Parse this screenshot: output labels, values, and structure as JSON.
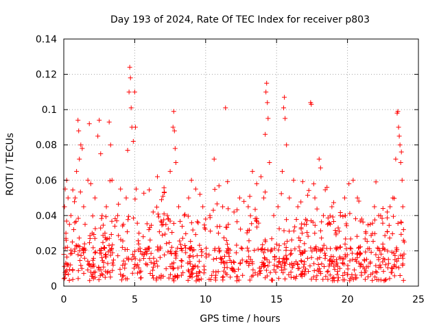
{
  "chart_data": {
    "type": "scatter",
    "title": "Day 193 of 2024, Rate Of TEC Index for receiver p803",
    "xlabel": "GPS time / hours",
    "ylabel": "ROTI / TECUs",
    "xlim": [
      0,
      25
    ],
    "ylim": [
      0,
      0.14
    ],
    "xticks": [
      0,
      5,
      10,
      15,
      20,
      25
    ],
    "xtick_labels": [
      "0",
      "5",
      "10",
      "15",
      "20",
      "25"
    ],
    "yticks": [
      0,
      0.02,
      0.04,
      0.06,
      0.08,
      0.1,
      0.12,
      0.14
    ],
    "ytick_labels": [
      "0",
      "0.02",
      "0.04",
      "0.06",
      "0.08",
      "0.1",
      "0.12",
      "0.14"
    ],
    "grid": true,
    "marker": "+",
    "color": "#ff0000",
    "series": [
      {
        "name": "ROTI",
        "points": [
          [
            0.0,
            0.018
          ],
          [
            0.05,
            0.045
          ],
          [
            0.1,
            0.055
          ],
          [
            0.15,
            0.03
          ],
          [
            0.2,
            0.06
          ],
          [
            0.25,
            0.022
          ],
          [
            0.3,
            0.05
          ],
          [
            0.35,
            0.012
          ],
          [
            0.4,
            0.035
          ],
          [
            0.5,
            0.04
          ],
          [
            0.6,
            0.025
          ],
          [
            0.7,
            0.032
          ],
          [
            0.8,
            0.05
          ],
          [
            0.9,
            0.065
          ],
          [
            1.0,
            0.094
          ],
          [
            1.05,
            0.088
          ],
          [
            1.1,
            0.072
          ],
          [
            1.2,
            0.08
          ],
          [
            1.3,
            0.078
          ],
          [
            1.4,
            0.045
          ],
          [
            1.5,
            0.035
          ],
          [
            1.7,
            0.06
          ],
          [
            1.8,
            0.092
          ],
          [
            1.9,
            0.058
          ],
          [
            2.0,
            0.03
          ],
          [
            2.2,
            0.05
          ],
          [
            2.4,
            0.085
          ],
          [
            2.5,
            0.094
          ],
          [
            2.6,
            0.075
          ],
          [
            2.7,
            0.04
          ],
          [
            2.9,
            0.03
          ],
          [
            3.0,
            0.045
          ],
          [
            3.2,
            0.093
          ],
          [
            3.3,
            0.08
          ],
          [
            3.4,
            0.06
          ],
          [
            3.6,
            0.034
          ],
          [
            3.8,
            0.04
          ],
          [
            4.0,
            0.055
          ],
          [
            4.2,
            0.035
          ],
          [
            4.4,
            0.05
          ],
          [
            4.5,
            0.077
          ],
          [
            4.6,
            0.11
          ],
          [
            4.65,
            0.124
          ],
          [
            4.7,
            0.118
          ],
          [
            4.75,
            0.101
          ],
          [
            4.8,
            0.09
          ],
          [
            4.9,
            0.082
          ],
          [
            5.0,
            0.11
          ],
          [
            5.05,
            0.09
          ],
          [
            5.1,
            0.055
          ],
          [
            5.3,
            0.03
          ],
          [
            5.6,
            0.028
          ],
          [
            6.0,
            0.032
          ],
          [
            6.3,
            0.042
          ],
          [
            6.6,
            0.062
          ],
          [
            7.0,
            0.035
          ],
          [
            7.3,
            0.04
          ],
          [
            7.5,
            0.065
          ],
          [
            7.7,
            0.09
          ],
          [
            7.75,
            0.099
          ],
          [
            7.8,
            0.088
          ],
          [
            7.85,
            0.078
          ],
          [
            7.9,
            0.07
          ],
          [
            8.1,
            0.045
          ],
          [
            8.5,
            0.04
          ],
          [
            8.8,
            0.05
          ],
          [
            9.0,
            0.06
          ],
          [
            9.3,
            0.055
          ],
          [
            9.6,
            0.052
          ],
          [
            9.8,
            0.045
          ],
          [
            10.0,
            0.038
          ],
          [
            10.3,
            0.04
          ],
          [
            10.6,
            0.072
          ],
          [
            10.9,
            0.03
          ],
          [
            11.2,
            0.045
          ],
          [
            11.4,
            0.101
          ],
          [
            11.6,
            0.035
          ],
          [
            12.0,
            0.042
          ],
          [
            12.4,
            0.05
          ],
          [
            12.7,
            0.048
          ],
          [
            13.0,
            0.045
          ],
          [
            13.3,
            0.065
          ],
          [
            13.6,
            0.058
          ],
          [
            13.9,
            0.062
          ],
          [
            14.1,
            0.05
          ],
          [
            14.2,
            0.086
          ],
          [
            14.25,
            0.11
          ],
          [
            14.3,
            0.115
          ],
          [
            14.35,
            0.104
          ],
          [
            14.4,
            0.095
          ],
          [
            14.5,
            0.07
          ],
          [
            14.8,
            0.04
          ],
          [
            15.1,
            0.045
          ],
          [
            15.4,
            0.065
          ],
          [
            15.5,
            0.101
          ],
          [
            15.55,
            0.107
          ],
          [
            15.6,
            0.095
          ],
          [
            15.7,
            0.08
          ],
          [
            15.9,
            0.05
          ],
          [
            16.2,
            0.06
          ],
          [
            16.5,
            0.045
          ],
          [
            16.8,
            0.03
          ],
          [
            17.1,
            0.035
          ],
          [
            17.4,
            0.104
          ],
          [
            17.45,
            0.103
          ],
          [
            17.7,
            0.05
          ],
          [
            18.0,
            0.072
          ],
          [
            18.1,
            0.067
          ],
          [
            18.3,
            0.04
          ],
          [
            18.6,
            0.035
          ],
          [
            18.9,
            0.045
          ],
          [
            19.2,
            0.03
          ],
          [
            19.5,
            0.04
          ],
          [
            19.8,
            0.05
          ],
          [
            20.1,
            0.058
          ],
          [
            20.4,
            0.06
          ],
          [
            20.7,
            0.05
          ],
          [
            21.0,
            0.038
          ],
          [
            21.3,
            0.03
          ],
          [
            21.6,
            0.035
          ],
          [
            21.9,
            0.045
          ],
          [
            22.2,
            0.04
          ],
          [
            22.5,
            0.044
          ],
          [
            22.8,
            0.042
          ],
          [
            23.0,
            0.045
          ],
          [
            23.2,
            0.05
          ],
          [
            23.4,
            0.072
          ],
          [
            23.5,
            0.098
          ],
          [
            23.55,
            0.099
          ],
          [
            23.6,
            0.09
          ],
          [
            23.65,
            0.085
          ],
          [
            23.7,
            0.08
          ],
          [
            23.75,
            0.07
          ],
          [
            23.8,
            0.076
          ],
          [
            23.85,
            0.06
          ],
          [
            23.9,
            0.045
          ],
          [
            23.95,
            0.032
          ],
          [
            24.0,
            0.025
          ]
        ],
        "baseline_band": {
          "x_start": 0,
          "x_end": 24,
          "y_min": 0.003,
          "y_typical_max": 0.03,
          "count": 900
        }
      }
    ]
  }
}
